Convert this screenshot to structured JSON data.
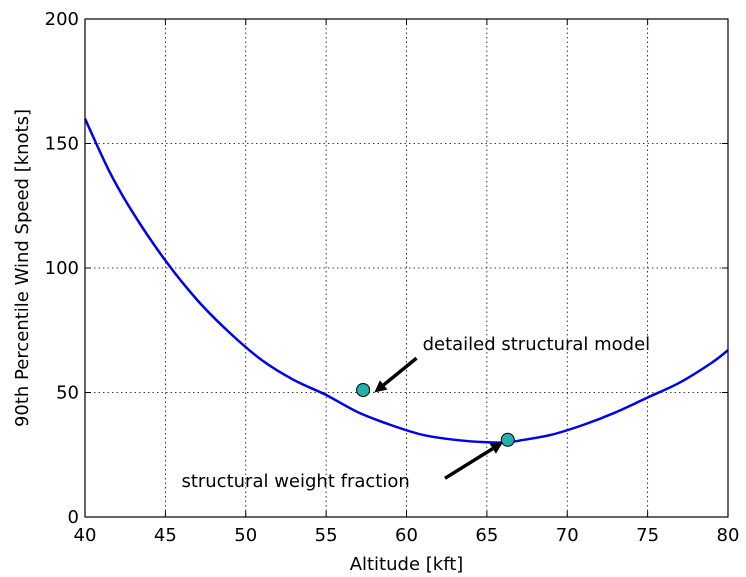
{
  "chart_data": {
    "type": "line",
    "title": "",
    "xlabel": "Altitude [kft]",
    "ylabel": "90th Percentile Wind Speed [knots]",
    "xlim": [
      40,
      80
    ],
    "ylim": [
      0,
      200
    ],
    "xticks": [
      "40",
      "45",
      "50",
      "55",
      "60",
      "65",
      "70",
      "75",
      "80"
    ],
    "yticks": [
      "0",
      "50",
      "100",
      "150",
      "200"
    ],
    "grid": true,
    "legend": "none",
    "series": [
      {
        "color": "#0000ee",
        "x": [
          40,
          41.5,
          43,
          45,
          47,
          49,
          51,
          53,
          55,
          57,
          59,
          61,
          63,
          65,
          66.3,
          67.3,
          69,
          71,
          73,
          75,
          77,
          79,
          80
        ],
        "y": [
          160,
          139,
          122,
          103,
          87,
          74,
          63,
          55,
          49,
          42,
          37,
          33,
          31,
          30,
          30,
          31,
          33,
          37,
          42,
          48,
          54,
          62,
          67
        ]
      }
    ],
    "markers": [
      {
        "x": 57.3,
        "y": 51,
        "color": "#20b2aa"
      },
      {
        "x": 66.3,
        "y": 31,
        "color": "#20b2aa"
      }
    ],
    "annotations": [
      {
        "text": "detailed structural model",
        "x": 61,
        "y": 67,
        "arrow_to_x": 58,
        "arrow_to_y": 50
      },
      {
        "text": "structural weight fraction",
        "x": 46,
        "y": 12,
        "arrow_to_x": 66,
        "arrow_to_y": 30
      }
    ]
  }
}
